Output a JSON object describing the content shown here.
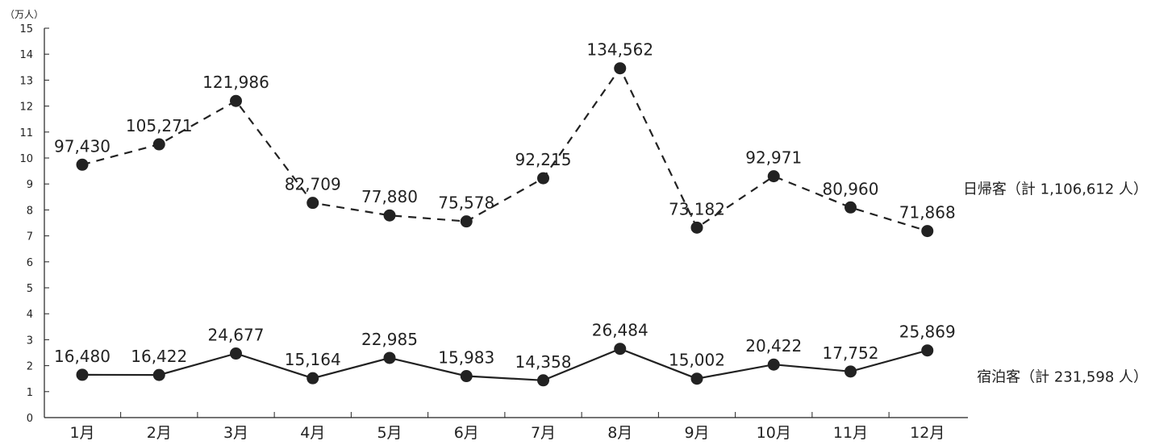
{
  "chart_data": {
    "type": "line",
    "unit_label": "（万人）",
    "categories": [
      "1月",
      "2月",
      "3月",
      "4月",
      "5月",
      "6月",
      "7月",
      "8月",
      "9月",
      "10月",
      "11月",
      "12月"
    ],
    "ylim": [
      0,
      15
    ],
    "yticks": [
      "0",
      "1",
      "2",
      "3",
      "4",
      "5",
      "6",
      "7",
      "8",
      "9",
      "10",
      "11",
      "12",
      "13",
      "14",
      "15"
    ],
    "grid": false,
    "series": [
      {
        "name": "日帰客（計 1,106,612 人）",
        "style": "dashed",
        "color": "#222222",
        "values": [
          97430,
          105271,
          121986,
          82709,
          77880,
          75578,
          92215,
          134562,
          73182,
          92971,
          80960,
          71868
        ],
        "labels": [
          "97,430",
          "105,271",
          "121,986",
          "82,709",
          "77,880",
          "75,578",
          "92,215",
          "134,562",
          "73,182",
          "92,971",
          "80,960",
          "71,868"
        ]
      },
      {
        "name": "宿泊客（計 231,598 人）",
        "style": "solid",
        "color": "#222222",
        "values": [
          16480,
          16422,
          24677,
          15164,
          22985,
          15983,
          14358,
          26484,
          15002,
          20422,
          17752,
          25869
        ],
        "labels": [
          "16,480",
          "16,422",
          "24,677",
          "15,164",
          "22,985",
          "15,983",
          "14,358",
          "26,484",
          "15,002",
          "20,422",
          "17,752",
          "25,869"
        ]
      }
    ]
  }
}
